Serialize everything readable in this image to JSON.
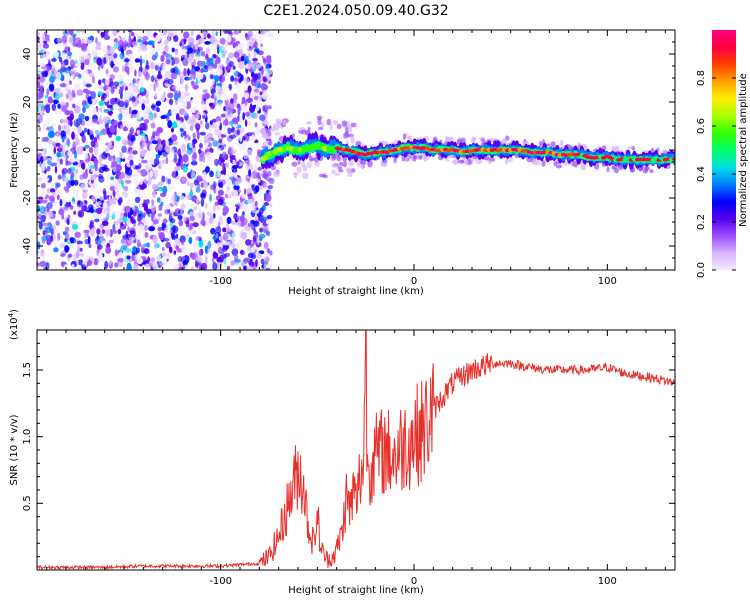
{
  "figure": {
    "title": "C2E1.2024.050.09.40.G32"
  },
  "chart_data": [
    {
      "type": "heatmap",
      "title": "C2E1.2024.050.09.40.G32",
      "xlabel": "Height of straight line (km)",
      "ylabel": "Frequency (Hz)",
      "xlim": [
        -195,
        135
      ],
      "ylim": [
        -50,
        50
      ],
      "x_ticks": [
        -100,
        0,
        100
      ],
      "x_tick_labels": [
        "-100",
        "0",
        "100"
      ],
      "y_ticks": [
        -40,
        -20,
        0,
        20,
        40
      ],
      "y_tick_labels": [
        "-40",
        "-20",
        "0",
        "20",
        "40"
      ],
      "ridge": {
        "name": "dominant tone",
        "x": [
          -80,
          -75,
          -70,
          -65,
          -60,
          -55,
          -50,
          -45,
          -40,
          -35,
          -30,
          -25,
          -20,
          -15,
          -10,
          -5,
          0,
          5,
          10,
          15,
          20,
          25,
          30,
          35,
          40,
          45,
          50,
          55,
          60,
          65,
          70,
          75,
          80,
          85,
          90,
          95,
          100,
          105,
          110,
          115,
          120,
          125,
          130,
          135
        ],
        "y": [
          -5,
          -2,
          0,
          1,
          -1,
          1,
          2,
          0,
          1,
          0,
          -1,
          -2,
          -1,
          -1,
          0,
          1,
          1,
          1,
          0,
          0,
          0,
          -1,
          0,
          0,
          0,
          0,
          0,
          0,
          -1,
          -1,
          -1,
          -2,
          -2,
          -2,
          -3,
          -3,
          -3,
          -4,
          -4,
          -4,
          -4,
          -4,
          -4,
          -4
        ]
      },
      "noise_region_x_max": -80,
      "grid": false
    },
    {
      "type": "line",
      "xlabel": "Height of straight line (km)",
      "ylabel": "SNR (10 * v/v)",
      "multiplier_label": "(x10",
      "multiplier_exponent": "4",
      "multiplier_close": ")",
      "xlim": [
        -195,
        135
      ],
      "ylim": [
        0,
        1.8
      ],
      "x_ticks": [
        -100,
        0,
        100
      ],
      "x_tick_labels": [
        "-100",
        "0",
        "100"
      ],
      "y_ticks": [
        0.5,
        1.0,
        1.5
      ],
      "y_tick_labels": [
        "0.5",
        "1.0",
        "1.5"
      ],
      "color": "#e8302c",
      "series": [
        {
          "x": [
            -195,
            -180,
            -160,
            -140,
            -120,
            -100,
            -90,
            -80,
            -75,
            -70,
            -65,
            -60,
            -57,
            -55,
            -52,
            -50,
            -48,
            -45,
            -42,
            -40,
            -37,
            -35,
            -33,
            -31,
            -30,
            -28,
            -26,
            -25,
            -24,
            -23,
            -20,
            -15,
            -10,
            -5,
            0,
            5,
            10,
            15,
            20,
            25,
            30,
            40,
            50,
            60,
            70,
            80,
            90,
            100,
            110,
            120,
            130,
            135
          ],
          "y": [
            0.02,
            0.02,
            0.02,
            0.03,
            0.03,
            0.03,
            0.04,
            0.05,
            0.1,
            0.25,
            0.5,
            0.75,
            0.65,
            0.35,
            0.2,
            0.4,
            0.15,
            0.08,
            0.1,
            0.15,
            0.3,
            0.55,
            0.45,
            0.6,
            0.5,
            0.7,
            0.8,
            1.8,
            0.75,
            0.8,
            0.85,
            0.9,
            0.85,
            0.95,
            1.0,
            1.05,
            1.2,
            1.3,
            1.4,
            1.45,
            1.5,
            1.55,
            1.55,
            1.52,
            1.5,
            1.5,
            1.5,
            1.52,
            1.47,
            1.45,
            1.42,
            1.4
          ]
        }
      ],
      "grid": false
    }
  ],
  "colorbar": {
    "label": "Normalized spectral amplitude",
    "range": [
      0,
      1
    ],
    "ticks": [
      0.0,
      0.2,
      0.4,
      0.6,
      0.8
    ],
    "tick_labels": [
      "0.0",
      "0.2",
      "0.4",
      "0.6",
      "0.8"
    ],
    "stops": [
      "#f2e9ff",
      "#d8b4ff",
      "#9b4dff",
      "#5500ee",
      "#0000ff",
      "#0080ff",
      "#00e0e0",
      "#00ff66",
      "#33ff00",
      "#aaff00",
      "#ffee00",
      "#ffa000",
      "#ff4000",
      "#ff0040",
      "#ff0080"
    ]
  }
}
